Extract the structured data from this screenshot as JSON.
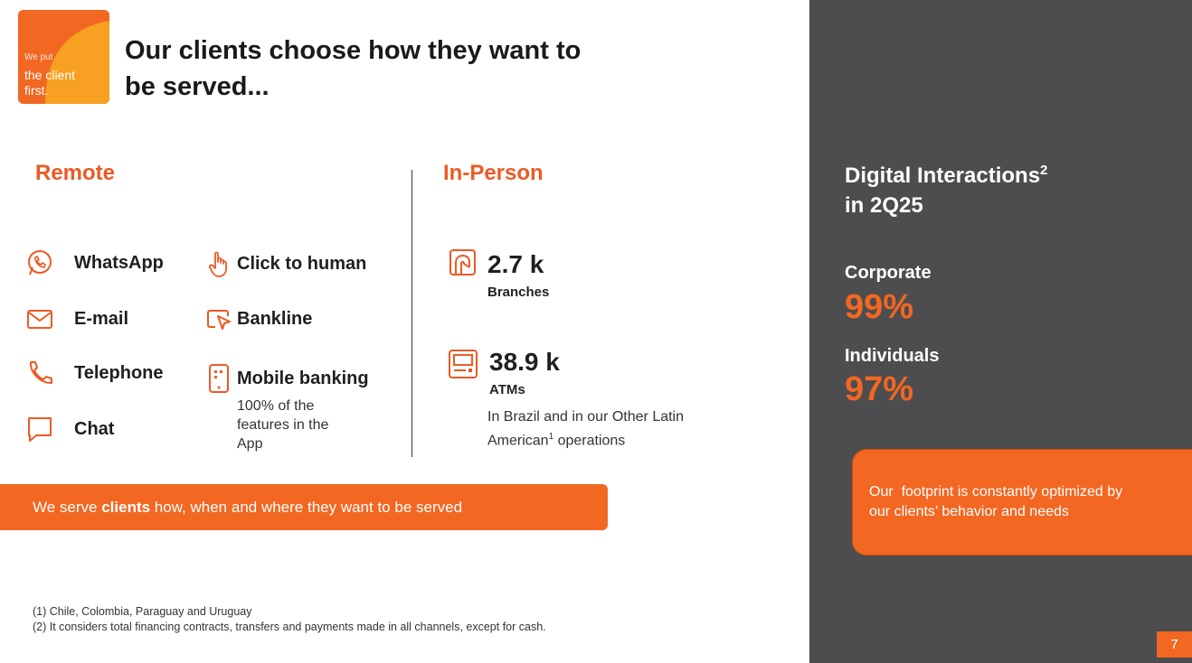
{
  "logo": {
    "line1": "We put",
    "line2": "the client",
    "line3": "first."
  },
  "title": "Our clients choose how they want to be served...",
  "remote": {
    "title": "Remote",
    "channels_left": [
      {
        "label": "WhatsApp",
        "icon": "whatsapp-icon"
      },
      {
        "label": "E-mail",
        "icon": "email-icon"
      },
      {
        "label": "Telephone",
        "icon": "phone-icon"
      },
      {
        "label": "Chat",
        "icon": "chat-icon"
      }
    ],
    "channels_right": [
      {
        "label": "Click to human",
        "icon": "touch-icon"
      },
      {
        "label": "Bankline",
        "icon": "cursor-icon"
      },
      {
        "label": "Mobile banking",
        "icon": "mobile-icon"
      }
    ],
    "mobile_note": "100% of the features in the App"
  },
  "in_person": {
    "title": "In-Person",
    "branches": {
      "value": "2.7 k",
      "label": "Branches",
      "icon": "branch-icon"
    },
    "atms": {
      "value": "38.9 k",
      "label": "ATMs",
      "icon": "atm-icon"
    },
    "note_part1": "In Brazil and in our Other Latin American",
    "note_sup": "1",
    "note_part2": " operations"
  },
  "banner": {
    "pre": "We serve ",
    "bold": "clients",
    "post": " how, when and where they want to be served"
  },
  "footnotes": {
    "note1": "(1) Chile, Colombia, Paraguay and Uruguay",
    "note2": "(2) It considers total financing contracts, transfers and payments made in all channels, except for cash."
  },
  "panel": {
    "title_line1": "Digital Interactions",
    "title_sup": "2",
    "title_line2": "in 2Q25",
    "corporate_label": "Corporate",
    "corporate_value": "99%",
    "individuals_label": "Individuals",
    "individuals_value": "97%",
    "callout": "Our  footprint is constantly optimized by our clients’ behavior and needs"
  },
  "page_number": "7",
  "colors": {
    "accent": "#f26722",
    "section_orange": "#ec5a24",
    "panel_gray": "#4d4d4f"
  }
}
